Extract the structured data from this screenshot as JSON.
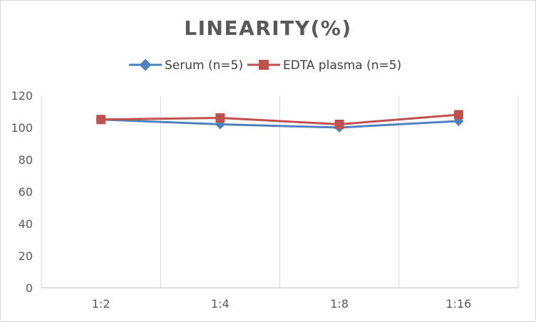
{
  "chart_data": {
    "type": "line",
    "title": "LINEARITY(%)",
    "xlabel": "",
    "ylabel": "",
    "categories": [
      "1:2",
      "1:4",
      "1:8",
      "1:16"
    ],
    "ylim": [
      0,
      120
    ],
    "yticks": [
      0,
      20,
      40,
      60,
      80,
      100,
      120
    ],
    "grid": "vertical",
    "legend_position": "top-center",
    "series": [
      {
        "name": "Serum (n=5)",
        "values": [
          105,
          102,
          100,
          104
        ],
        "color": "#4f81bd",
        "marker": "diamond"
      },
      {
        "name": "EDTA plasma (n=5)",
        "values": [
          105,
          106,
          102,
          108
        ],
        "color": "#c0504d",
        "marker": "square"
      }
    ]
  },
  "colors": {
    "axis": "#bfbfbf",
    "grid": "#d9d9d9",
    "text": "#595959"
  }
}
